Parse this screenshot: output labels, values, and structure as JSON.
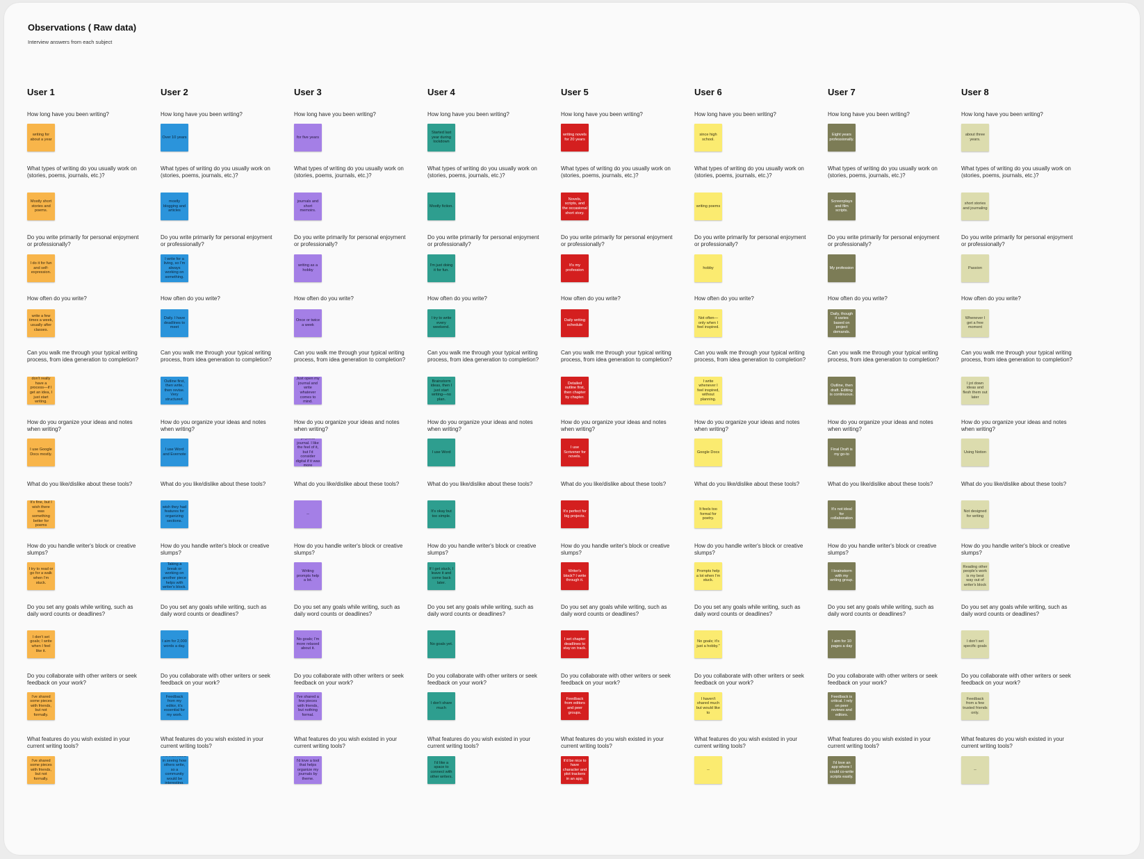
{
  "board": {
    "title": "Observations ( Raw data)",
    "subtitle": "Interview answers from each subject"
  },
  "questions": [
    "How long have you been writing?",
    "What types of writing do you usually work on (stories, poems, journals, etc.)?",
    "Do you write primarily for personal enjoyment or professionally?",
    "How often do you write?",
    "Can you walk me through your typical writing process, from idea generation to completion?",
    "How do you organize your ideas and notes when writing?",
    "What do you like/dislike about these tools?",
    "How do you handle writer's block or creative slumps?",
    "Do you set any goals while writing, such as daily word counts or deadlines?",
    "Do you collaborate with other writers or seek feedback on your work?",
    "What features do you wish existed in your current writing tools?"
  ],
  "users": [
    {
      "name": "User 1",
      "color": "#f8b54a",
      "text_color": "#3a2a10",
      "answers": [
        "writing for about a year",
        "Mostly short stories and poems.",
        "I do it for fun and self-expression.",
        "write a few times a week, usually after classes.",
        "don't really have a process—if I get an idea, I just start writing.",
        "I use Google Docs mostly.",
        "It's fine, but I wish there was something better for poems",
        "I try to read or go for a walk when I'm stuck.",
        "I don't set goals; I write when I feel like it.",
        "I've shared some pieces with friends, but not formally.",
        "I've shared some pieces with friends, but not formally."
      ]
    },
    {
      "name": "User 2",
      "color": "#2b94db",
      "text_color": "#0d2236",
      "answers": [
        "Over 10 years",
        "mostly blogging and articles",
        "I write for a living, so I'm always working on something.",
        "Daily. I have deadlines to meet",
        "Outline first, then write, then revise. Very structured.",
        "I use Word and Evernote",
        "wish they had features for organizing sections.",
        "Taking a break or working on another piece helps with writer's block.",
        "I aim for 2,000 words a day.",
        "Feedback from my editor, it's essential for my work.",
        "I'm interested in seeing how others write, so a community would be interesting."
      ]
    },
    {
      "name": "User 3",
      "color": "#a47fe6",
      "text_color": "#23163d",
      "answers": [
        "for five years",
        "journals and short memoirs.",
        "writing as a hobby",
        "Once or twice a week",
        "Just open my journal and write whatever comes to mind.",
        "I use a physical journal. I like the feel of it, but I'd consider digital if it was more convenient.",
        "--",
        "Writing prompts help a lot.",
        "No goals; I'm more relaxed about it.",
        "I've shared a few pieces with friends, but nothing formal.",
        "I'd love a tool that helps organize my journals by theme."
      ]
    },
    {
      "name": "User 4",
      "color": "#2e9e8f",
      "text_color": "#0c2622",
      "answers": [
        "Started last year during lockdown",
        "Mostly fiction.",
        "I'm just doing it for fun.",
        "I try to write every weekend.",
        "Brainstorm ideas, then I just start writing—no plan.",
        "I use Word",
        "It's okay but too simple.",
        "If I get stuck, I leave it and come back later.",
        "No goals yet.",
        "I don't share much",
        "I'd like a space to connect with other writers."
      ]
    },
    {
      "name": "User 5",
      "color": "#d41f1f",
      "text_color": "#ffffff",
      "answers": [
        "writing novels for 20 years",
        "Novels, scripts, and the occasional short story.",
        "It's my profession",
        "Daily writing schedule",
        "Detailed outline first, then chapter by chapter.",
        "I use Scrivener for novels.",
        "It's perfect for big projects.",
        "Writer's block? I write through it.",
        "I set chapter deadlines to stay on track.",
        "Feedback from editors and peer groups.",
        "It'd be nice to have character and plot trackers in an app."
      ]
    },
    {
      "name": "User 6",
      "color": "#fbeb70",
      "text_color": "#3a3414",
      "answers": [
        "since high school.",
        "writing poems",
        "hobby",
        "Not often—only when I feel inspired.",
        "I write whenever I feel inspired, without planning.",
        "Google Docs",
        "It feels too formal for poetry.",
        "Prompts help a lot when I'm stuck.",
        "No goals; it's just a hobby.\"",
        "I haven't shared much but would like to",
        "--"
      ]
    },
    {
      "name": "User 7",
      "color": "#7c7c56",
      "text_color": "#ffffff",
      "answers": [
        "Eight years professionally.",
        "Screenplays and film scripts.",
        "My profession",
        "Daily, though it varies based on project demands.",
        "Outline, then draft. Editing is continuous.",
        "Final Draft is my go-to",
        "It's not ideal for collaboration",
        "I brainstorm with my writing group.",
        "I aim for 10 pages a day",
        "Feedback is critical. I rely on peer reviews and editors.",
        "I'd love an app where I could co-write scripts easily."
      ]
    },
    {
      "name": "User 8",
      "color": "#dcdcae",
      "text_color": "#3b3b28",
      "answers": [
        "about three years.",
        "short stories and journaling",
        "Passion",
        "Whenever I get a free moment",
        "I jot down ideas and flesh them out later",
        "Using Notion",
        "Not designed for writing",
        "Reading other people's work is my best way out of writer's block",
        "I don't set specific goals",
        "Feedback from a few trusted friends only.",
        "--"
      ]
    }
  ]
}
